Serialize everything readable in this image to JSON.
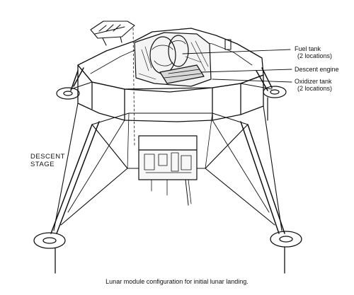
{
  "figure": {
    "caption": "Lunar module configuration for initial lunar landing.",
    "stage_label": {
      "line1": "DESCENT",
      "line2": "STAGE"
    },
    "callouts": {
      "fuel_tank": {
        "title": "Fuel tank",
        "detail": "(2 locations)"
      },
      "descent_engine": {
        "title": "Descent engine"
      },
      "oxidizer_tank": {
        "title": "Oxidizer tank",
        "detail": "(2 locations)"
      }
    },
    "ink_color": "#111111",
    "paper_color": "#ffffff"
  }
}
